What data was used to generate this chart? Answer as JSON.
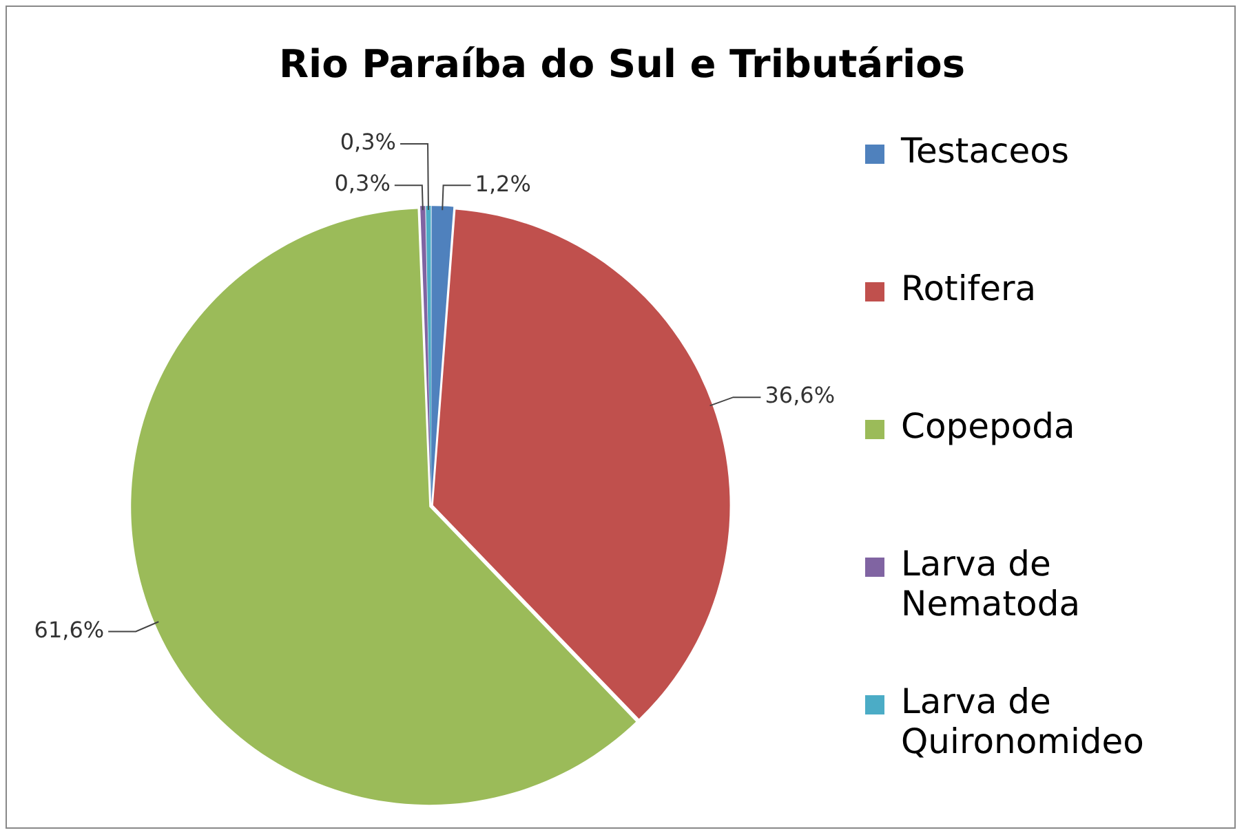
{
  "chart_data": {
    "type": "pie",
    "title": "Rio Paraíba do Sul e Tributários",
    "categories": [
      "Testaceos",
      "Rotifera",
      "Copepoda",
      "Larva de Nematoda",
      "Larva de Quironomideo"
    ],
    "values": [
      1.2,
      36.6,
      61.6,
      0.3,
      0.3
    ],
    "colors": [
      "#4f81bd",
      "#c0504d",
      "#9bbb59",
      "#8064a2",
      "#4bacc6"
    ],
    "value_labels": [
      "1,2%",
      "36,6%",
      "61,6%",
      "0,3%",
      "0,3%"
    ],
    "legend": "right"
  }
}
